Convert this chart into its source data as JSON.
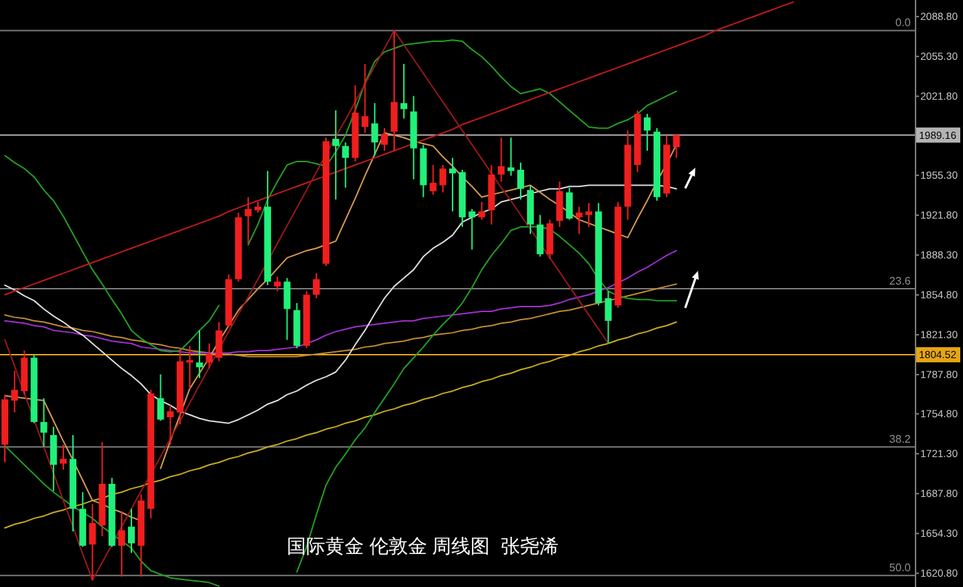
{
  "chart_data": {
    "type": "candlestick",
    "annotations": [
      "国际黄金 伦敦金 周线图  张尧浠",
      {
        "text": "0.0",
        "y": 2077
      },
      {
        "text": "23.6",
        "y": 1860
      },
      {
        "text": "38.2",
        "y": 1727
      },
      {
        "text": "50.0",
        "y": 1619
      }
    ],
    "categories": [
      null,
      null,
      null,
      null,
      null,
      null,
      null,
      null,
      null,
      null,
      null,
      null,
      null,
      null,
      null,
      null,
      null,
      null,
      null,
      null,
      null,
      null,
      null,
      null,
      null,
      null,
      null,
      null,
      null,
      null,
      null,
      null,
      null,
      null,
      null,
      null,
      null,
      null,
      null,
      null,
      null,
      null,
      null,
      null,
      null,
      null,
      null,
      null,
      null,
      null,
      null,
      null,
      null,
      null,
      null,
      null,
      null,
      null,
      null,
      null,
      null,
      null,
      null,
      null,
      null,
      null,
      null,
      null,
      null,
      null,
      null,
      null,
      null,
      null,
      null,
      null,
      null,
      null,
      null,
      null,
      null,
      null,
      null,
      null,
      null,
      null,
      null,
      null,
      null,
      null,
      null,
      null,
      null,
      null
    ],
    "ohlc": [
      [
        1729,
        1771,
        1714,
        1767
      ],
      [
        1766,
        1791,
        1756,
        1775
      ],
      [
        1774,
        1808,
        1771,
        1802
      ],
      [
        1802,
        1805,
        1747,
        1748
      ],
      [
        1748,
        1768,
        1727,
        1739
      ],
      [
        1737,
        1744,
        1690,
        1712
      ],
      [
        1713,
        1729,
        1708,
        1717
      ],
      [
        1717,
        1737,
        1656,
        1675
      ],
      [
        1675,
        1689,
        1643,
        1644
      ],
      [
        1645,
        1679,
        1615,
        1663
      ],
      [
        1661,
        1731,
        1652,
        1696
      ],
      [
        1696,
        1701,
        1643,
        1644
      ],
      [
        1644,
        1673,
        1618,
        1657
      ],
      [
        1660,
        1675,
        1638,
        1646
      ],
      [
        1644,
        1687,
        1618,
        1682
      ],
      [
        1675,
        1775,
        1667,
        1772
      ],
      [
        1768,
        1788,
        1749,
        1750
      ],
      [
        1752,
        1762,
        1729,
        1757
      ],
      [
        1756,
        1810,
        1746,
        1799
      ],
      [
        1798,
        1812,
        1776,
        1800
      ],
      [
        1798,
        1825,
        1785,
        1794
      ],
      [
        1798,
        1814,
        1793,
        1805
      ],
      [
        1802,
        1832,
        1799,
        1825
      ],
      [
        1829,
        1872,
        1828,
        1868
      ],
      [
        1868,
        1924,
        1866,
        1920
      ],
      [
        1921,
        1937,
        1898,
        1927
      ],
      [
        1926,
        1933,
        1924,
        1929
      ],
      [
        1929,
        1959,
        1863,
        1866
      ],
      [
        1862,
        1870,
        1858,
        1866
      ],
      [
        1866,
        1869,
        1817,
        1843
      ],
      [
        1842,
        1848,
        1810,
        1812
      ],
      [
        1812,
        1858,
        1810,
        1855
      ],
      [
        1855,
        1873,
        1852,
        1868
      ],
      [
        1881,
        1987,
        1879,
        1984
      ],
      [
        1986,
        2010,
        1935,
        1980
      ],
      [
        1980,
        1983,
        1945,
        1970
      ],
      [
        1970,
        2031,
        1967,
        2008
      ],
      [
        1996,
        2049,
        1991,
        2005
      ],
      [
        1999,
        2016,
        1972,
        1983
      ],
      [
        1981,
        1995,
        1976,
        1990
      ],
      [
        1992,
        2077,
        1976,
        2017
      ],
      [
        2016,
        2049,
        2003,
        2011
      ],
      [
        2009,
        2022,
        1952,
        1978
      ],
      [
        1978,
        1981,
        1937,
        1947
      ],
      [
        1942,
        1964,
        1939,
        1949
      ],
      [
        1947,
        1964,
        1941,
        1961
      ],
      [
        1961,
        1970,
        1925,
        1957
      ],
      [
        1958,
        1960,
        1912,
        1920
      ],
      [
        1925,
        1927,
        1893,
        1920
      ],
      [
        1920,
        1933,
        1918,
        1925
      ],
      [
        1926,
        1964,
        1914,
        1956
      ],
      [
        1956,
        1987,
        1950,
        1963
      ],
      [
        1962,
        1987,
        1955,
        1959
      ],
      [
        1960,
        1966,
        1935,
        1944
      ],
      [
        1943,
        1947,
        1906,
        1914
      ],
      [
        1914,
        1922,
        1887,
        1889
      ],
      [
        1889,
        1918,
        1885,
        1915
      ],
      [
        1917,
        1950,
        1912,
        1942
      ],
      [
        1941,
        1945,
        1918,
        1919
      ],
      [
        1920,
        1929,
        1906,
        1924
      ],
      [
        1922,
        1932,
        1912,
        1925
      ],
      [
        1925,
        1932,
        1846,
        1848
      ],
      [
        1852,
        1858,
        1814,
        1833
      ],
      [
        1846,
        1933,
        1844,
        1929
      ],
      [
        1929,
        1993,
        1918,
        1981
      ],
      [
        1964,
        2010,
        1958,
        2007
      ],
      [
        2004,
        2007,
        1976,
        1993
      ],
      [
        1992,
        1995,
        1934,
        1937
      ],
      [
        1940,
        1989,
        1937,
        1981
      ],
      [
        1979,
        1990,
        1970,
        1989.16
      ],
      null,
      null,
      null,
      null,
      null,
      null,
      null,
      null,
      null,
      null,
      null,
      null,
      null,
      null,
      null,
      null,
      null,
      null,
      null,
      null,
      null,
      null,
      null,
      null
    ],
    "colors": [
      "#f01e1e",
      "#f01e1e",
      "#f01e1e",
      "#21f07a",
      "#21f07a",
      "#21f07a",
      "#f01e1e",
      "#21f07a",
      "#21f07a",
      "#f01e1e",
      "#f01e1e",
      "#21f07a",
      "#f01e1e",
      "#21f07a",
      "#f01e1e",
      "#f01e1e",
      "#21f07a",
      "#f01e1e",
      "#f01e1e",
      "#f01e1e",
      "#21f07a",
      "#f01e1e",
      "#f01e1e",
      "#f01e1e",
      "#f01e1e",
      "#f01e1e",
      "#f01e1e",
      "#21f07a",
      "#f01e1e",
      "#21f07a",
      "#21f07a",
      "#f01e1e",
      "#f01e1e",
      "#f01e1e",
      "#21f07a",
      "#21f07a",
      "#f01e1e",
      "#f01e1e",
      "#21f07a",
      "#f01e1e",
      "#f01e1e",
      "#21f07a",
      "#21f07a",
      "#21f07a",
      "#f01e1e",
      "#f01e1e",
      "#21f07a",
      "#21f07a",
      "#21f07a",
      "#f01e1e",
      "#f01e1e",
      "#f01e1e",
      "#21f07a",
      "#21f07a",
      "#21f07a",
      "#21f07a",
      "#f01e1e",
      "#f01e1e",
      "#21f07a",
      "#f01e1e",
      "#f01e1e",
      "#21f07a",
      "#21f07a",
      "#f01e1e",
      "#f01e1e",
      "#f01e1e",
      "#21f07a",
      "#21f07a",
      "#f01e1e",
      "#f01e1e",
      null,
      null,
      null,
      null,
      null,
      null,
      null,
      null,
      null,
      null,
      null,
      null,
      null,
      null,
      null,
      null,
      null,
      null,
      null,
      null,
      null,
      null,
      null,
      null
    ],
    "series": [
      {
        "type": "line",
        "color": "#c8aa1e",
        "values": [
          1659,
          1662,
          1664,
          1667,
          1669,
          1672,
          1674,
          1677,
          1679,
          1682,
          1684,
          1687,
          1689,
          1692,
          1694,
          1697,
          1699,
          1702,
          1704,
          1707,
          1709,
          1712,
          1714,
          1717,
          1719,
          1722,
          1724,
          1727,
          1729,
          1732,
          1734,
          1737,
          1739,
          1742,
          1744,
          1747,
          1749,
          1752,
          1754,
          1757,
          1759,
          1762,
          1764,
          1767,
          1769,
          1772,
          1774,
          1777,
          1779,
          1782,
          1784,
          1787,
          1789,
          1792,
          1794,
          1797,
          1799,
          1802,
          1804,
          1807,
          1809,
          1812,
          1814,
          1817,
          1819,
          1822,
          1824,
          1827,
          1829,
          1832,
          null,
          null,
          null,
          null,
          null,
          null,
          null,
          null,
          null,
          null,
          null,
          null,
          null,
          null,
          null,
          null,
          null,
          null,
          null,
          null,
          null,
          null,
          null,
          null
        ]
      },
      {
        "type": "line",
        "color": "#c08a30",
        "values": [
          1838,
          1836,
          1835,
          1833,
          1832,
          1830,
          1828,
          1827,
          1825,
          1824,
          1822,
          1820,
          1819,
          1817,
          1816,
          1814,
          1813,
          1811,
          1810,
          1808,
          1807,
          1806,
          1805,
          1805,
          1804,
          1803,
          1803,
          1803,
          1803,
          1803,
          1803,
          1804,
          1805,
          1806,
          1807,
          1808,
          1809,
          1811,
          1812,
          1814,
          1815,
          1816,
          1818,
          1819,
          1821,
          1822,
          1823,
          1825,
          1826,
          1828,
          1829,
          1831,
          1832,
          1834,
          1835,
          1837,
          1839,
          1841,
          1842,
          1844,
          1846,
          1848,
          1850,
          1852,
          1854,
          1856,
          1858,
          1860,
          1862,
          1864,
          null,
          null,
          null,
          null,
          null,
          null,
          null,
          null,
          null,
          null,
          null,
          null,
          null,
          null,
          null,
          null,
          null,
          null,
          null,
          null,
          null,
          null,
          null,
          null
        ]
      },
      {
        "type": "line",
        "color": "#a030d0",
        "values": [
          1833,
          1832,
          1831,
          1829,
          1828,
          1825,
          1824,
          1823,
          1821,
          1820,
          1818,
          1816,
          1815,
          1814,
          1811,
          1810,
          1809,
          1808,
          1807,
          1806,
          1806,
          1806,
          1806,
          1806,
          1807,
          1807,
          1808,
          1808,
          1809,
          1810,
          1811,
          1814,
          1817,
          1821,
          1824,
          1826,
          1828,
          1829,
          1830,
          1831,
          1832,
          1833,
          1833,
          1835,
          1836,
          1837,
          1838,
          1839,
          1840,
          1841,
          1841,
          1843,
          1844,
          1845,
          1845,
          1845,
          1846,
          1848,
          1851,
          1853,
          1855,
          1858,
          1861,
          1865,
          1869,
          1874,
          1878,
          1883,
          1888,
          1892,
          null,
          null,
          null,
          null,
          null,
          null,
          null,
          null,
          null,
          null,
          null,
          null,
          null,
          null,
          null,
          null,
          null,
          null,
          null,
          null,
          null,
          null,
          null,
          null
        ]
      },
      {
        "type": "line",
        "color": "#dcdcdc",
        "values": [
          1863,
          1859,
          1854,
          1850,
          1843,
          1837,
          1832,
          1826,
          1821,
          1814,
          1807,
          1800,
          1793,
          1787,
          1780,
          1771,
          1766,
          1762,
          1757,
          1754,
          1751,
          1749,
          1748,
          1747,
          1750,
          1754,
          1758,
          1763,
          1766,
          1771,
          1774,
          1779,
          1783,
          1786,
          1790,
          1800,
          1813,
          1825,
          1839,
          1852,
          1862,
          1869,
          1876,
          1887,
          1894,
          1899,
          1905,
          1916,
          1920,
          1924,
          1927,
          1933,
          1935,
          1937,
          1940,
          1942,
          1944,
          1944,
          1946,
          1946,
          1947,
          1947,
          1947,
          1947,
          1947,
          1947,
          1947,
          1947,
          1946,
          1944,
          null,
          null,
          null,
          null,
          null,
          null,
          null,
          null,
          null,
          null,
          null,
          null,
          null,
          null,
          null,
          null,
          null,
          null,
          null,
          null,
          null,
          null,
          null,
          null
        ]
      },
      {
        "type": "line",
        "color": "#22a022",
        "values": [
          1972,
          1966,
          1961,
          1954,
          1943,
          1934,
          1921,
          1906,
          1891,
          1876,
          1864,
          1851,
          1839,
          1825,
          1818,
          1813,
          1808,
          1807,
          1808,
          1816,
          1825,
          1833,
          1846,
          null,
          null,
          1897,
          1914,
          1935,
          1950,
          1964,
          1967,
          1967,
          1965,
          1963,
          1975,
          1989,
          2010,
          2033,
          2051,
          2059,
          2062,
          2065,
          2066,
          2067,
          2068,
          2068,
          2069,
          2068,
          2061,
          2055,
          2047,
          2038,
          2030,
          2024,
          2026,
          2028,
          2024,
          2017,
          2010,
          2003,
          1996,
          1995,
          1995,
          1999,
          2002,
          2007,
          2014,
          2018,
          2022,
          2026,
          null,
          null,
          null,
          null,
          null,
          null,
          null,
          null,
          null,
          null,
          null,
          null,
          null,
          null,
          null,
          null,
          null,
          null,
          null,
          null,
          null,
          null,
          null,
          null
        ]
      },
      {
        "type": "line",
        "color": "#22a022",
        "values": [
          1728,
          1720,
          1712,
          1704,
          1696,
          1689,
          1683,
          1677,
          1672,
          1667,
          1660,
          1654,
          1648,
          1642,
          1631,
          1623,
          1620,
          1617,
          1616,
          1615,
          1614,
          1613,
          1610,
          null,
          null,
          null,
          null,
          null,
          null,
          null,
          1622,
          1643,
          1670,
          1695,
          1710,
          1721,
          1733,
          1743,
          1756,
          1768,
          1780,
          1793,
          1802,
          1811,
          1821,
          1830,
          1838,
          1848,
          1861,
          1876,
          1888,
          1898,
          1909,
          1912,
          1912,
          1912,
          1910,
          1904,
          1897,
          1890,
          1881,
          1868,
          1858,
          1854,
          1852,
          1851,
          1851,
          1850,
          1850,
          1850,
          null,
          null,
          null,
          null,
          null,
          null,
          null,
          null,
          null,
          null,
          null,
          null,
          null,
          null,
          null,
          null,
          null,
          null,
          null,
          null,
          null,
          null,
          null,
          null
        ]
      },
      {
        "type": "line",
        "color": "#d89a50",
        "values": [
          1770,
          1769,
          1768,
          1767,
          1766,
          1749,
          1732,
          1716,
          1699,
          1682,
          1679,
          1675,
          1672,
          1668,
          1665,
          null,
          1709,
          1732,
          1754,
          1776,
          1789,
          1802,
          1816,
          1829,
          1842,
          1851,
          1860,
          1868,
          1877,
          1886,
          1889,
          1892,
          1894,
          1897,
          1900,
          1918,
          1936,
          1955,
          1973,
          1991,
          1989,
          1987,
          1984,
          1982,
          1980,
          1971,
          1963,
          1954,
          1946,
          1937,
          1939,
          1941,
          1943,
          1945,
          1947,
          1941,
          1935,
          1930,
          1924,
          1918,
          1915,
          1912,
          1909,
          1906,
          1903,
          1919,
          1934,
          1950,
          1965,
          1981,
          null,
          null,
          null,
          null,
          null,
          null,
          null,
          null,
          null,
          null,
          null,
          null,
          null,
          null,
          null,
          null,
          null,
          null,
          null,
          null,
          null,
          null,
          null,
          null
        ]
      },
      {
        "type": "line",
        "color": "#c01c1c",
        "values": [
          1855,
          1858,
          1861,
          1864,
          1867,
          1870,
          1873,
          1876,
          1879,
          1882,
          1885,
          1888,
          1891,
          1894,
          1897,
          1900,
          1903,
          1906,
          1909,
          1912,
          1915,
          1918,
          1921,
          1925,
          1928,
          1931,
          1934,
          1937,
          1940,
          1943,
          1946,
          1949,
          1952,
          1955,
          1958,
          1961,
          1964,
          1967,
          1970,
          1973,
          1976,
          1979,
          1982,
          1985,
          1988,
          1991,
          1994,
          1998,
          2001,
          2004,
          2007,
          2010,
          2013,
          2016,
          2019,
          2022,
          2025,
          2028,
          2031,
          2034,
          2037,
          2040,
          2043,
          2046,
          2049,
          2052,
          2055,
          2058,
          2061,
          2064,
          2067,
          2070,
          2073,
          2077,
          2080,
          2083,
          2086,
          2089,
          2092,
          2095,
          2098,
          2101,
          null,
          null,
          null,
          null,
          null,
          null,
          null,
          null,
          null,
          null,
          null,
          null
        ]
      },
      {
        "type": "line",
        "color": "#9a1818",
        "values": [
          1817,
          1795,
          1772,
          1750,
          1727,
          1705,
          1682,
          1660,
          1637,
          1615,
          1630,
          1645,
          1660,
          1675,
          1690,
          1704,
          1719,
          1734,
          1749,
          1764,
          1779,
          1794,
          1809,
          1824,
          1839,
          1853,
          1868,
          1883,
          1898,
          1913,
          1928,
          1943,
          1958,
          1973,
          1988,
          2002,
          2017,
          2032,
          2047,
          2062,
          2077,
          2065,
          2053,
          2041,
          2029,
          2017,
          2005,
          1993,
          1981,
          1969,
          1957,
          1945,
          1934,
          1922,
          1910,
          1898,
          1886,
          1874,
          1862,
          1850,
          1838,
          1826,
          1814,
          null,
          null,
          null,
          null,
          null,
          null,
          null,
          null,
          null,
          null,
          null,
          null,
          null,
          null,
          null,
          null,
          null,
          null,
          null,
          null,
          null,
          null,
          null,
          null,
          null,
          null,
          null,
          null,
          null,
          null,
          null
        ]
      }
    ],
    "ylim": [
      1609.3,
      2102.7
    ],
    "yticks": [
      {
        "value": 2088.8,
        "label": "2088.80"
      },
      {
        "value": 2055.3,
        "label": "2055.30"
      },
      {
        "value": 2021.8,
        "label": "2021.80"
      },
      {
        "value": 1955.3,
        "label": "1955.30"
      },
      {
        "value": 1921.8,
        "label": "1921.80"
      },
      {
        "value": 1888.3,
        "label": "1888.30"
      },
      {
        "value": 1854.8,
        "label": "1854.80"
      },
      {
        "value": 1821.3,
        "label": "1821.30"
      },
      {
        "value": 1787.8,
        "label": "1787.80"
      },
      {
        "value": 1754.8,
        "label": "1754.80"
      },
      {
        "value": 1721.3,
        "label": "1721.30"
      },
      {
        "value": 1687.8,
        "label": "1687.80"
      },
      {
        "value": 1654.3,
        "label": "1654.30"
      },
      {
        "value": 1620.8,
        "label": "1620.80"
      }
    ],
    "ref_lines": [
      {
        "axis": "y",
        "value": 2077,
        "color": "#7a7a7a"
      },
      {
        "axis": "y",
        "value": 1860,
        "color": "#7a7a7a"
      },
      {
        "axis": "y",
        "value": 1727,
        "color": "#7a7a7a"
      },
      {
        "axis": "y",
        "value": 1619,
        "color": "#7a7a7a"
      },
      {
        "axis": "y",
        "value": 1989.16,
        "label": "1989.16",
        "color": "#b4b4b4"
      },
      {
        "axis": "y",
        "value": 1804.52,
        "label": "1804.52",
        "color": "#e6a514"
      }
    ],
    "tick_labels": "y"
  }
}
